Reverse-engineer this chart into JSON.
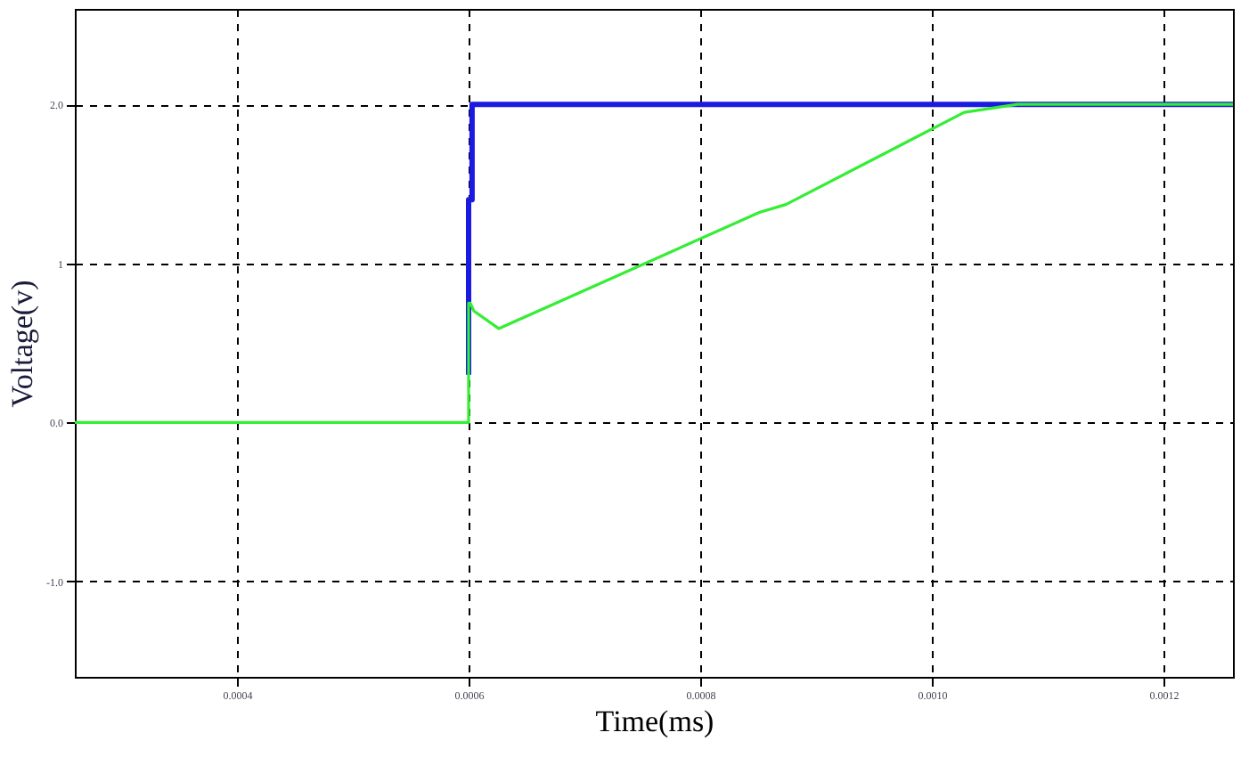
{
  "chart_data": {
    "type": "line",
    "xlabel": "Time(ms)",
    "ylabel": "Voltage(v)",
    "xlim": [
      0.00026,
      0.00126
    ],
    "ylim": [
      -1.6,
      2.6
    ],
    "xticks": [
      {
        "value": 0.0004,
        "label": "0.0004"
      },
      {
        "value": 0.0006,
        "label": "0.0006"
      },
      {
        "value": 0.0008,
        "label": "0.0008"
      },
      {
        "value": 0.001,
        "label": "0.0010"
      },
      {
        "value": 0.0012,
        "label": "0.0012"
      }
    ],
    "yticks": [
      {
        "value": -1,
        "label": "-1.0"
      },
      {
        "value": 0,
        "label": "0.0"
      },
      1,
      {
        "value": 2,
        "label": "2.0"
      }
    ],
    "grid": true,
    "line_style": "solid",
    "marker": "none",
    "series": [
      {
        "color": "#1a1ae0",
        "x": [
          0.0006,
          0.0006,
          0.000603,
          0.000603,
          0.00126
        ],
        "values": [
          0.3,
          1.4,
          1.4,
          2.0,
          2.0
        ]
      },
      {
        "color": "#33ee33",
        "x": [
          0.00026,
          0.0006,
          0.0006,
          0.0006015,
          0.0006046,
          0.000626,
          0.000851,
          0.000874,
          0.001028,
          0.001074,
          0.00126
        ],
        "values": [
          0,
          0,
          0.75,
          0.75,
          0.7,
          0.59,
          1.32,
          1.37,
          1.95,
          2.0,
          2.0
        ]
      }
    ]
  }
}
